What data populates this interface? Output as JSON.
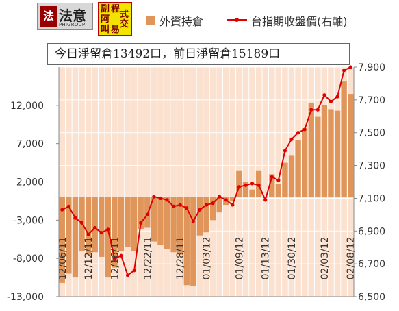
{
  "logo": {
    "mark": "法",
    "text": "法意",
    "sub": "PHIGROUP"
  },
  "stamp": {
    "chars": [
      "程",
      "式",
      "交",
      "易",
      "叫",
      "阿",
      "叫",
      "副"
    ]
  },
  "legend": {
    "bar_label": "外資持倉",
    "line_label": "台指期收盤價(右軸)"
  },
  "info_text": "今日淨留倉13492口，前日淨留倉15189口",
  "colors": {
    "bar": "#e0965a",
    "line": "#e00000",
    "plot_bg": "#fbe1cf",
    "grid": "#ffffff"
  },
  "chart_data": {
    "type": "bar",
    "title": "",
    "xlabel": "",
    "ylabel": "",
    "ylim": [
      -13000,
      17000
    ],
    "y2lim": [
      6500,
      7900
    ],
    "yticks": [
      -13000,
      -8000,
      -3000,
      2000,
      7000,
      12000
    ],
    "y2ticks": [
      6500,
      6700,
      6900,
      7100,
      7300,
      7500,
      7700,
      7900
    ],
    "ytick_labels": [
      "-13,000",
      "-8,000",
      "-3,000",
      "2,000",
      "7,000",
      "12,000"
    ],
    "y2tick_labels": [
      "6,500",
      "6,700",
      "6,900",
      "7,100",
      "7,300",
      "7,500",
      "7,700",
      "7,900"
    ],
    "x_labels": [
      "12/06/11",
      "12/12/11",
      "12/16/11",
      "12/22/11",
      "12/28/11",
      "01/03/12",
      "01/09/12",
      "01/13/12",
      "01/30/12",
      "02/03/12",
      "02/08/12"
    ],
    "grid": true,
    "legend_position": "top",
    "series": [
      {
        "name": "外資持倉",
        "kind": "bar",
        "axis": "left",
        "values": [
          -11200,
          -10000,
          -10500,
          -7000,
          -7500,
          -7200,
          -7800,
          -10500,
          -9200,
          -7000,
          -6500,
          -7000,
          -4200,
          -4000,
          -5800,
          -6200,
          -6800,
          -7200,
          -7500,
          -11500,
          -11600,
          -5000,
          -4600,
          -3000,
          -2000,
          -1000,
          -500,
          3500,
          2000,
          1000,
          3500,
          0,
          3000,
          1700,
          4500,
          5500,
          7500,
          9000,
          12300,
          10500,
          12000,
          11500,
          11300,
          15200,
          13500
        ]
      },
      {
        "name": "台指期收盤價(右軸)",
        "kind": "line",
        "axis": "right",
        "values": [
          7030,
          7050,
          6980,
          6950,
          6880,
          6920,
          6890,
          6910,
          6730,
          6750,
          6630,
          6660,
          6950,
          7000,
          7110,
          7100,
          7090,
          7050,
          7060,
          7040,
          6960,
          7030,
          7060,
          7070,
          7110,
          7090,
          7060,
          7170,
          7180,
          7190,
          7180,
          7090,
          7230,
          7210,
          7390,
          7460,
          7500,
          7520,
          7640,
          7640,
          7730,
          7690,
          7720,
          7880,
          7900
        ]
      }
    ]
  }
}
